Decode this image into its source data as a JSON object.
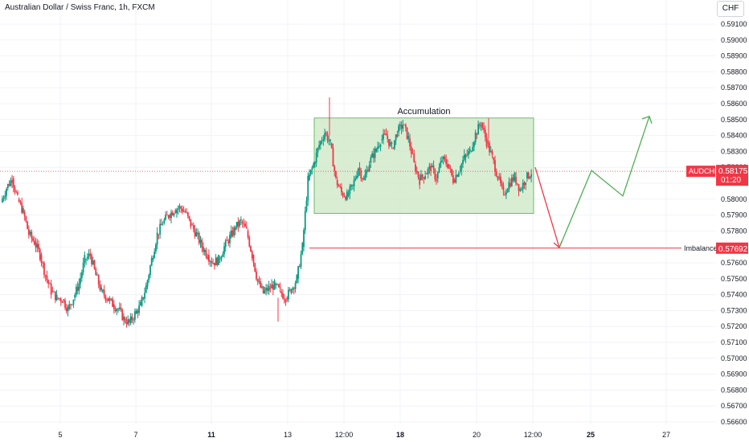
{
  "header": {
    "title": "Australian Dollar / Swiss Franc, 1h, FXCM",
    "currency": "CHF"
  },
  "colors": {
    "up": "#089981",
    "down": "#f23645",
    "zone_fill": "#cfe9c8",
    "zone_stroke": "#4caf50",
    "red_arrow": "#f23645",
    "green_arrow": "#4caf50",
    "grid": "#f0f3fa"
  },
  "chart_data": {
    "type": "candlestick",
    "symbol": "AUDCHF",
    "ylim": [
      0.5657,
      0.5918
    ],
    "y_ticks": [
      "0.59100",
      "0.59000",
      "0.58900",
      "0.58800",
      "0.58700",
      "0.58600",
      "0.58500",
      "0.58400",
      "0.58300",
      "0.58200",
      "0.58100",
      "0.58000",
      "0.57900",
      "0.57800",
      "0.57700",
      "0.57600",
      "0.57500",
      "0.57400",
      "0.57300",
      "0.57200",
      "0.57100",
      "0.57000",
      "0.56900",
      "0.56800",
      "0.56700",
      "0.56600"
    ],
    "x_ticks": [
      {
        "label": "5",
        "bold": false
      },
      {
        "label": "7",
        "bold": false
      },
      {
        "label": "11",
        "bold": true
      },
      {
        "label": "13",
        "bold": false
      },
      {
        "label": "12:00",
        "bold": false
      },
      {
        "label": "18",
        "bold": true
      },
      {
        "label": "20",
        "bold": false
      },
      {
        "label": "12:00",
        "bold": false
      },
      {
        "label": "25",
        "bold": true
      },
      {
        "label": "27",
        "bold": false
      }
    ],
    "price_line": {
      "label": "AUDCHF",
      "price": "0.58175",
      "countdown": "01:20",
      "value": 0.58175
    },
    "imbalance": {
      "label": "Imbalance",
      "price": "0.57692",
      "value": 0.57692
    },
    "accumulation": {
      "label": "Accumulation",
      "high": 0.5851,
      "low": 0.5791
    },
    "arrows": {
      "red": [
        0.582,
        0.5769
      ],
      "green": [
        0.5769,
        0.5818,
        0.5802,
        0.5852
      ]
    },
    "close_path": [
      0.5798,
      0.5807,
      0.5813,
      0.58,
      0.5792,
      0.5778,
      0.5773,
      0.5765,
      0.5752,
      0.5742,
      0.5738,
      0.5737,
      0.5731,
      0.5738,
      0.5747,
      0.5762,
      0.5765,
      0.5752,
      0.5742,
      0.5738,
      0.5734,
      0.5731,
      0.5725,
      0.5722,
      0.5728,
      0.5733,
      0.5745,
      0.5762,
      0.5778,
      0.5785,
      0.579,
      0.5793,
      0.5795,
      0.5792,
      0.5784,
      0.5778,
      0.577,
      0.5765,
      0.576,
      0.5762,
      0.577,
      0.5776,
      0.5782,
      0.5786,
      0.578,
      0.5765,
      0.5748,
      0.5741,
      0.5744,
      0.5746,
      0.5742,
      0.5738,
      0.5743,
      0.575,
      0.577,
      0.5812,
      0.5822,
      0.5834,
      0.5842,
      0.5835,
      0.5812,
      0.5804,
      0.5802,
      0.5808,
      0.582,
      0.5812,
      0.5823,
      0.583,
      0.5837,
      0.584,
      0.5832,
      0.5842,
      0.5847,
      0.5838,
      0.5822,
      0.5812,
      0.5816,
      0.582,
      0.5813,
      0.5825,
      0.5822,
      0.5812,
      0.5818,
      0.5826,
      0.583,
      0.5841,
      0.5848,
      0.5836,
      0.5826,
      0.5814,
      0.5803,
      0.581,
      0.5814,
      0.5806,
      0.5813,
      0.5817
    ]
  }
}
